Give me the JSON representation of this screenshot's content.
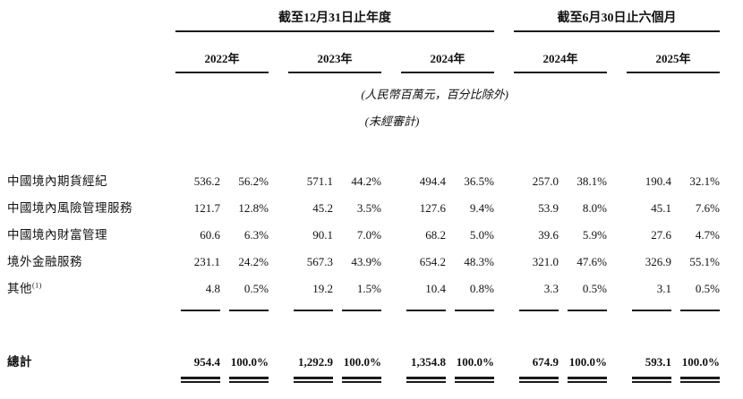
{
  "table": {
    "col_groups": {
      "annual": {
        "title": "截至12月31日止年度",
        "years": [
          "2022年",
          "2023年",
          "2024年"
        ]
      },
      "interim": {
        "title": "截至6月30日止六個月",
        "years": [
          "2024年",
          "2025年"
        ]
      }
    },
    "notes": {
      "units": "(人民幣百萬元，百分比除外)",
      "unaudited": "(未經審計)"
    },
    "rows": [
      {
        "label": "中國境內期貨經紀",
        "cells": [
          "536.2",
          "56.2%",
          "571.1",
          "44.2%",
          "494.4",
          "36.5%",
          "257.0",
          "38.1%",
          "190.4",
          "32.1%"
        ]
      },
      {
        "label": "中國境內風險管理服務",
        "cells": [
          "121.7",
          "12.8%",
          "45.2",
          "3.5%",
          "127.6",
          "9.4%",
          "53.9",
          "8.0%",
          "45.1",
          "7.6%"
        ]
      },
      {
        "label": "中國境內財富管理",
        "cells": [
          "60.6",
          "6.3%",
          "90.1",
          "7.0%",
          "68.2",
          "5.0%",
          "39.6",
          "5.9%",
          "27.6",
          "4.7%"
        ]
      },
      {
        "label": "境外金融服務",
        "cells": [
          "231.1",
          "24.2%",
          "567.3",
          "43.9%",
          "654.2",
          "48.3%",
          "321.0",
          "47.6%",
          "326.9",
          "55.1%"
        ]
      },
      {
        "label": "其他",
        "footnote": "(1)",
        "cells": [
          "4.8",
          "0.5%",
          "19.2",
          "1.5%",
          "10.4",
          "0.8%",
          "3.3",
          "0.5%",
          "3.1",
          "0.5%"
        ]
      }
    ],
    "total": {
      "label": "總計",
      "cells": [
        "954.4",
        "100.0%",
        "1,292.9",
        "100.0%",
        "1,354.8",
        "100.0%",
        "674.9",
        "100.0%",
        "593.1",
        "100.0%"
      ]
    }
  }
}
